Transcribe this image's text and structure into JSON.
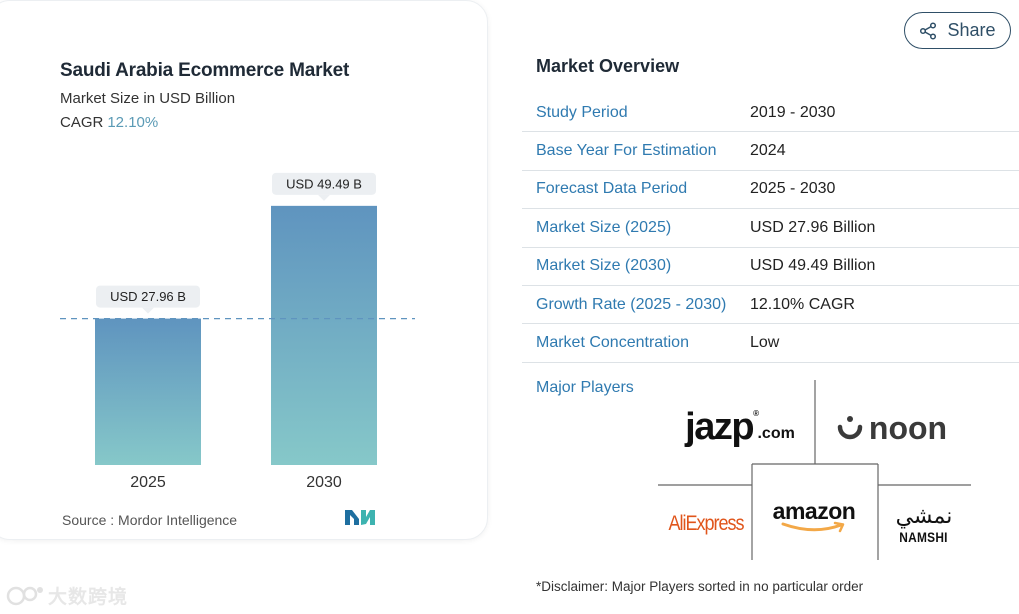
{
  "chart_data": {
    "type": "bar",
    "title": "Saudi Arabia Ecommerce Market",
    "subtitle": "Market Size in USD Billion",
    "cagr_label": "CAGR",
    "cagr_value": "12.10%",
    "categories": [
      "2025",
      "2030"
    ],
    "values": [
      27.96,
      49.49
    ],
    "data_labels": [
      "USD 27.96 B",
      "USD 49.49 B"
    ],
    "reference_line": 27.96,
    "ylim": [
      0,
      55
    ],
    "xlabel": "",
    "ylabel": "",
    "source": "Source :  Mordor Intelligence",
    "colors": {
      "bar_top": "#5f94bf",
      "bar_bottom": "#86c8c9",
      "label_bg": "#eceff2",
      "ref_line": "#5f94bf"
    }
  },
  "share": {
    "label": "Share"
  },
  "overview": {
    "title": "Market Overview",
    "rows": [
      {
        "key": "Study Period",
        "value": "2019 - 2030"
      },
      {
        "key": "Base Year For Estimation",
        "value": "2024"
      },
      {
        "key": "Forecast Data Period",
        "value": "2025 - 2030"
      },
      {
        "key": "Market Size (2025)",
        "value": "USD 27.96 Billion"
      },
      {
        "key": "Market Size (2030)",
        "value": "USD 49.49 Billion"
      },
      {
        "key": "Growth Rate (2025 - 2030)",
        "value": "12.10% CAGR"
      },
      {
        "key": "Market Concentration",
        "value": "Low"
      }
    ],
    "major_players_label": "Major Players",
    "players": {
      "jazp": "jazp",
      "jazp_domain": ".com",
      "noon": "noon",
      "amazon": "amazon",
      "aliexpress": "AliExpress",
      "namshi_ar": "نمشي",
      "namshi_en": "NAMSHI"
    },
    "disclaimer": "*Disclaimer: Major Players sorted in no particular order"
  },
  "watermark": {
    "text": "大数跨境"
  }
}
